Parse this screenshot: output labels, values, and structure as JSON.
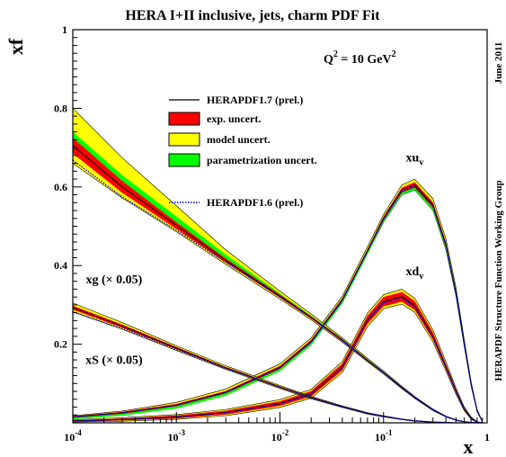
{
  "chart_data": {
    "type": "line",
    "title": "HERA I+II inclusive, jets, charm PDF Fit",
    "xlabel": "x",
    "ylabel": "xf",
    "xscale": "log",
    "xlim": [
      0.0001,
      1
    ],
    "ylim": [
      0,
      1
    ],
    "x_ticks": [
      {
        "value": 0.0001,
        "base": "10",
        "exp": "-4"
      },
      {
        "value": 0.001,
        "base": "10",
        "exp": "-3"
      },
      {
        "value": 0.01,
        "base": "10",
        "exp": "-2"
      },
      {
        "value": 0.1,
        "base": "10",
        "exp": "-1"
      },
      {
        "value": 1,
        "base": "1",
        "exp": ""
      }
    ],
    "y_ticks": [
      {
        "value": 0.2,
        "label": "0.2"
      },
      {
        "value": 0.4,
        "label": "0.4"
      },
      {
        "value": 0.6,
        "label": "0.6"
      },
      {
        "value": 0.8,
        "label": "0.8"
      },
      {
        "value": 1.0,
        "label": "1"
      }
    ],
    "q2": {
      "text": "Q",
      "sup": "2",
      "mid": " = 10 GeV",
      "sup2": "2"
    },
    "side_labels": {
      "right_top": "June 2011",
      "right_main": "HERAPDF Structure Function Working Group"
    },
    "legend": {
      "placement": "upper-middle",
      "entries": [
        {
          "label": "HERAPDF1.7 (prel.)",
          "kind": "line",
          "color": "#000000"
        },
        {
          "label": "exp. uncert.",
          "kind": "box",
          "color": "#ff0000"
        },
        {
          "label": "model uncert.",
          "kind": "box",
          "color": "#ffff00"
        },
        {
          "label": "parametrization uncert.",
          "kind": "box",
          "color": "#00ff00"
        },
        {
          "label": "HERAPDF1.6 (prel.)",
          "kind": "dotted",
          "color": "#0000ff"
        }
      ]
    },
    "series": [
      {
        "id": "xuv",
        "label_main": "xu",
        "label_sub": "v",
        "label_at": {
          "x": 0.2,
          "y": 0.665
        },
        "x": [
          0.0001,
          0.0003,
          0.001,
          0.003,
          0.01,
          0.02,
          0.04,
          0.07,
          0.1,
          0.15,
          0.2,
          0.3,
          0.4,
          0.5,
          0.6,
          0.7,
          0.8,
          0.9
        ],
        "central": [
          0.0151,
          0.0255,
          0.045,
          0.078,
          0.141,
          0.207,
          0.313,
          0.438,
          0.52,
          0.592,
          0.605,
          0.554,
          0.453,
          0.332,
          0.204,
          0.099,
          0.031,
          0.003
        ],
        "dotted": [
          0.0148,
          0.0251,
          0.0445,
          0.077,
          0.14,
          0.205,
          0.311,
          0.436,
          0.517,
          0.588,
          0.6,
          0.55,
          0.45,
          0.33,
          0.202,
          0.098,
          0.031,
          0.003
        ],
        "total_lo": [
          0.011,
          0.02,
          0.038,
          0.071,
          0.133,
          0.199,
          0.305,
          0.43,
          0.51,
          0.58,
          0.592,
          0.54,
          0.44,
          0.322,
          0.196,
          0.094,
          0.028,
          0.002
        ],
        "total_hi": [
          0.018,
          0.03,
          0.052,
          0.086,
          0.15,
          0.216,
          0.322,
          0.448,
          0.53,
          0.605,
          0.62,
          0.57,
          0.468,
          0.345,
          0.213,
          0.105,
          0.034,
          0.004
        ],
        "exp_lo": [
          0.013,
          0.023,
          0.042,
          0.075,
          0.137,
          0.203,
          0.309,
          0.434,
          0.515,
          0.586,
          0.598,
          0.547,
          0.446,
          0.327,
          0.2,
          0.096,
          0.029,
          0.002
        ],
        "exp_hi": [
          0.017,
          0.028,
          0.048,
          0.081,
          0.145,
          0.211,
          0.317,
          0.442,
          0.525,
          0.598,
          0.612,
          0.561,
          0.46,
          0.338,
          0.208,
          0.102,
          0.033,
          0.004
        ],
        "param_lo": [
          0.009,
          0.018,
          0.036,
          0.069,
          0.131,
          0.197,
          0.303,
          0.428,
          0.51,
          0.58,
          0.592,
          0.54,
          0.44,
          0.322,
          0.196,
          0.094,
          0.028,
          0.002
        ],
        "param_hi": [
          0.0151,
          0.0255,
          0.045,
          0.078,
          0.141,
          0.207,
          0.313,
          0.438,
          0.52,
          0.592,
          0.605,
          0.554,
          0.453,
          0.332,
          0.204,
          0.099,
          0.031,
          0.003
        ]
      },
      {
        "id": "xdv",
        "label_main": "xd",
        "label_sub": "v",
        "label_at": {
          "x": 0.2,
          "y": 0.375
        },
        "x": [
          0.0001,
          0.0003,
          0.001,
          0.003,
          0.01,
          0.02,
          0.04,
          0.07,
          0.1,
          0.15,
          0.2,
          0.3,
          0.4,
          0.5,
          0.6,
          0.7,
          0.8,
          0.9
        ],
        "central": [
          0.0047,
          0.0082,
          0.0148,
          0.026,
          0.049,
          0.074,
          0.142,
          0.262,
          0.308,
          0.321,
          0.298,
          0.22,
          0.143,
          0.081,
          0.036,
          0.012,
          0.002,
          0.0
        ],
        "dotted": [
          0.0045,
          0.008,
          0.0145,
          0.0255,
          0.048,
          0.073,
          0.14,
          0.26,
          0.305,
          0.318,
          0.295,
          0.218,
          0.141,
          0.08,
          0.035,
          0.012,
          0.002,
          0.0
        ],
        "total_lo": [
          0.002,
          0.004,
          0.009,
          0.018,
          0.039,
          0.063,
          0.128,
          0.245,
          0.29,
          0.302,
          0.281,
          0.206,
          0.132,
          0.073,
          0.031,
          0.009,
          0.001,
          0.0
        ],
        "total_hi": [
          0.008,
          0.013,
          0.021,
          0.034,
          0.059,
          0.085,
          0.156,
          0.279,
          0.326,
          0.34,
          0.317,
          0.236,
          0.155,
          0.089,
          0.041,
          0.015,
          0.003,
          0.0
        ],
        "exp_lo": [
          0.003,
          0.006,
          0.011,
          0.021,
          0.043,
          0.067,
          0.133,
          0.251,
          0.296,
          0.308,
          0.287,
          0.211,
          0.136,
          0.076,
          0.033,
          0.01,
          0.001,
          0.0
        ],
        "exp_hi": [
          0.007,
          0.011,
          0.019,
          0.031,
          0.055,
          0.081,
          0.151,
          0.273,
          0.32,
          0.333,
          0.31,
          0.23,
          0.15,
          0.086,
          0.039,
          0.014,
          0.003,
          0.0
        ],
        "param_lo": [
          0.0047,
          0.0082,
          0.0148,
          0.026,
          0.049,
          0.074,
          0.142,
          0.262,
          0.308,
          0.321,
          0.298,
          0.22,
          0.143,
          0.081,
          0.036,
          0.012,
          0.002,
          0.0
        ],
        "param_hi": [
          0.0047,
          0.0082,
          0.0148,
          0.026,
          0.049,
          0.074,
          0.142,
          0.262,
          0.308,
          0.321,
          0.298,
          0.22,
          0.143,
          0.081,
          0.036,
          0.012,
          0.002,
          0.0
        ]
      },
      {
        "id": "xg",
        "label_main": "xg (× 0.05)",
        "label_sub": "",
        "label_at": {
          "x": 0.00025,
          "y": 0.355
        },
        "x": [
          0.0001,
          0.0003,
          0.001,
          0.003,
          0.01,
          0.02,
          0.04,
          0.07,
          0.1,
          0.15,
          0.2,
          0.3,
          0.4,
          0.5,
          0.6,
          0.7,
          0.8,
          0.9
        ],
        "central": [
          0.705,
          0.6,
          0.502,
          0.413,
          0.322,
          0.268,
          0.21,
          0.159,
          0.128,
          0.09,
          0.065,
          0.033,
          0.016,
          0.007,
          0.003,
          0.001,
          0.0,
          0.0
        ],
        "dotted": [
          0.668,
          0.575,
          0.49,
          0.408,
          0.321,
          0.267,
          0.209,
          0.158,
          0.127,
          0.089,
          0.064,
          0.033,
          0.016,
          0.007,
          0.003,
          0.001,
          0.0,
          0.0
        ],
        "total_lo": [
          0.66,
          0.572,
          0.486,
          0.403,
          0.315,
          0.262,
          0.205,
          0.155,
          0.124,
          0.087,
          0.062,
          0.031,
          0.015,
          0.006,
          0.002,
          0.0,
          0.0,
          0.0
        ],
        "total_hi": [
          0.8,
          0.674,
          0.552,
          0.44,
          0.335,
          0.277,
          0.216,
          0.164,
          0.132,
          0.093,
          0.067,
          0.035,
          0.017,
          0.008,
          0.003,
          0.001,
          0.0,
          0.0
        ],
        "exp_lo": [
          0.685,
          0.585,
          0.493,
          0.408,
          0.318,
          0.265,
          0.207,
          0.157,
          0.126,
          0.088,
          0.063,
          0.032,
          0.015,
          0.007,
          0.002,
          0.001,
          0.0,
          0.0
        ],
        "exp_hi": [
          0.725,
          0.615,
          0.51,
          0.418,
          0.326,
          0.271,
          0.213,
          0.161,
          0.13,
          0.092,
          0.066,
          0.034,
          0.017,
          0.008,
          0.003,
          0.001,
          0.0,
          0.0
        ],
        "param_lo": [
          0.705,
          0.6,
          0.502,
          0.413,
          0.322,
          0.268,
          0.21,
          0.159,
          0.128,
          0.09,
          0.065,
          0.033,
          0.016,
          0.007,
          0.003,
          0.001,
          0.0,
          0.0
        ],
        "param_hi": [
          0.74,
          0.63,
          0.525,
          0.428,
          0.329,
          0.273,
          0.214,
          0.162,
          0.131,
          0.092,
          0.066,
          0.034,
          0.017,
          0.008,
          0.003,
          0.001,
          0.0,
          0.0
        ]
      },
      {
        "id": "xs",
        "label_main": "xS (× 0.05)",
        "label_sub": "",
        "label_at": {
          "x": 0.00025,
          "y": 0.15
        },
        "x": [
          0.0001,
          0.0003,
          0.001,
          0.003,
          0.01,
          0.02,
          0.04,
          0.07,
          0.1,
          0.15,
          0.2,
          0.3,
          0.4,
          0.5,
          0.6,
          0.7,
          0.8,
          0.9
        ],
        "central": [
          0.293,
          0.246,
          0.19,
          0.14,
          0.091,
          0.064,
          0.041,
          0.024,
          0.016,
          0.009,
          0.005,
          0.002,
          0.001,
          0.0,
          0.0,
          0.0,
          0.0,
          0.0
        ],
        "dotted": [
          0.283,
          0.24,
          0.187,
          0.138,
          0.09,
          0.063,
          0.04,
          0.024,
          0.016,
          0.009,
          0.005,
          0.002,
          0.001,
          0.0,
          0.0,
          0.0,
          0.0,
          0.0
        ],
        "total_lo": [
          0.282,
          0.238,
          0.184,
          0.136,
          0.087,
          0.061,
          0.039,
          0.022,
          0.015,
          0.008,
          0.004,
          0.001,
          0.0,
          0.0,
          0.0,
          0.0,
          0.0,
          0.0
        ],
        "total_hi": [
          0.305,
          0.255,
          0.196,
          0.145,
          0.095,
          0.067,
          0.043,
          0.026,
          0.018,
          0.01,
          0.006,
          0.002,
          0.001,
          0.0,
          0.0,
          0.0,
          0.0,
          0.0
        ],
        "exp_lo": [
          0.288,
          0.242,
          0.187,
          0.138,
          0.089,
          0.063,
          0.04,
          0.023,
          0.016,
          0.009,
          0.005,
          0.002,
          0.001,
          0.0,
          0.0,
          0.0,
          0.0,
          0.0
        ],
        "exp_hi": [
          0.298,
          0.25,
          0.193,
          0.142,
          0.093,
          0.066,
          0.042,
          0.025,
          0.017,
          0.01,
          0.006,
          0.002,
          0.001,
          0.0,
          0.0,
          0.0,
          0.0,
          0.0
        ],
        "param_lo": [
          0.293,
          0.246,
          0.19,
          0.14,
          0.091,
          0.064,
          0.041,
          0.024,
          0.016,
          0.009,
          0.005,
          0.002,
          0.001,
          0.0,
          0.0,
          0.0,
          0.0,
          0.0
        ],
        "param_hi": [
          0.293,
          0.246,
          0.19,
          0.14,
          0.091,
          0.064,
          0.041,
          0.024,
          0.016,
          0.009,
          0.005,
          0.002,
          0.001,
          0.0,
          0.0,
          0.0,
          0.0,
          0.0
        ]
      }
    ]
  }
}
